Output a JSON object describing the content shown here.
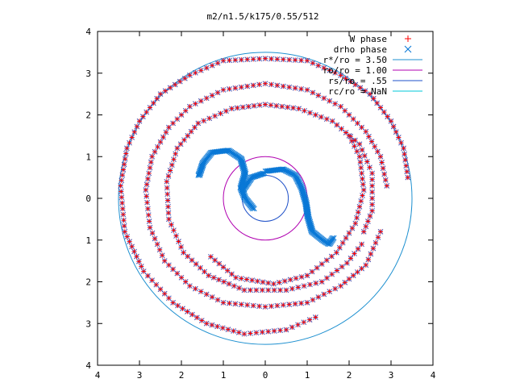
{
  "chart_data": {
    "type": "scatter",
    "title": "m2/n1.5/k175/0.55/512",
    "xlabel": "",
    "ylabel": "",
    "xlim": [
      -4,
      4
    ],
    "ylim": [
      -4,
      4
    ],
    "x_ticks": [
      "4",
      "3",
      "2",
      "1",
      "0",
      "1",
      "2",
      "3",
      "4"
    ],
    "y_ticks": [
      "4",
      "3",
      "2",
      "1",
      "0",
      "1",
      "2",
      "3",
      "4"
    ],
    "grid": false,
    "legend_position": "top-right",
    "legend": [
      {
        "label": "W phase",
        "type": "points",
        "marker": "plus",
        "color": "#ff0000"
      },
      {
        "label": "drho phase",
        "type": "points",
        "marker": "cross",
        "color": "#0a78d6"
      },
      {
        "label": "r*/ro = 3.50",
        "type": "line",
        "color": "#1e90d0"
      },
      {
        "label": "ro/ro = 1.00",
        "type": "line",
        "color": "#b000b0"
      },
      {
        "label": "rs/ro = .55",
        "type": "line",
        "color": "#1e50c8"
      },
      {
        "label": "rc/ro = NaN",
        "type": "line",
        "color": "#00c8d8"
      }
    ],
    "circles": [
      {
        "name": "r*/ro = 3.50",
        "radius": 3.5,
        "color": "#1e90d0"
      },
      {
        "name": "ro/ro = 1.00",
        "radius": 1.0,
        "color": "#b000b0"
      },
      {
        "name": "rs/ro = .55",
        "radius": 0.55,
        "color": "#1e50c8"
      }
    ],
    "series": [
      {
        "name": "W phase",
        "marker_color": "#ff0000",
        "arms": [
          {
            "points": [
              [
                3.4,
                0.5
              ],
              [
                3.3,
                1.2
              ],
              [
                3.0,
                1.85
              ],
              [
                2.5,
                2.5
              ],
              [
                1.8,
                2.95
              ],
              [
                1.0,
                3.3
              ],
              [
                0.0,
                3.35
              ],
              [
                -1.0,
                3.3
              ],
              [
                -1.8,
                2.95
              ],
              [
                -2.5,
                2.5
              ],
              [
                -3.0,
                1.85
              ],
              [
                -3.3,
                1.2
              ],
              [
                -3.45,
                0.3
              ],
              [
                -3.35,
                -0.8
              ],
              [
                -2.9,
                -1.75
              ],
              [
                -2.2,
                -2.5
              ],
              [
                -1.4,
                -3.0
              ],
              [
                -0.5,
                -3.25
              ],
              [
                0.5,
                -3.15
              ],
              [
                1.2,
                -2.85
              ]
            ]
          },
          {
            "points": [
              [
                2.9,
                0.3
              ],
              [
                2.75,
                1.0
              ],
              [
                2.4,
                1.6
              ],
              [
                1.8,
                2.2
              ],
              [
                1.0,
                2.6
              ],
              [
                0.0,
                2.75
              ],
              [
                -1.0,
                2.6
              ],
              [
                -1.8,
                2.2
              ],
              [
                -2.3,
                1.7
              ],
              [
                -2.7,
                1.0
              ],
              [
                -2.85,
                0.2
              ],
              [
                -2.75,
                -0.7
              ],
              [
                -2.4,
                -1.5
              ],
              [
                -1.8,
                -2.1
              ],
              [
                -1.0,
                -2.5
              ],
              [
                0.0,
                -2.6
              ],
              [
                1.0,
                -2.5
              ],
              [
                1.8,
                -2.1
              ],
              [
                2.4,
                -1.6
              ],
              [
                2.75,
                -0.8
              ]
            ]
          },
          {
            "points": [
              [
                2.35,
                -0.8
              ],
              [
                2.55,
                -0.3
              ],
              [
                2.55,
                0.6
              ],
              [
                2.25,
                1.3
              ],
              [
                1.6,
                1.85
              ],
              [
                0.8,
                2.15
              ],
              [
                0.0,
                2.25
              ],
              [
                -0.8,
                2.15
              ],
              [
                -1.6,
                1.8
              ],
              [
                -2.1,
                1.2
              ],
              [
                -2.35,
                0.4
              ],
              [
                -2.3,
                -0.5
              ],
              [
                -1.95,
                -1.3
              ],
              [
                -1.35,
                -1.85
              ],
              [
                -0.5,
                -2.2
              ],
              [
                0.5,
                -2.2
              ],
              [
                1.35,
                -2.0
              ],
              [
                1.95,
                -1.55
              ],
              [
                2.3,
                -1.1
              ]
            ]
          },
          {
            "points": [
              [
                2.0,
                1.5
              ],
              [
                2.25,
                1.0
              ],
              [
                2.35,
                0.2
              ],
              [
                2.15,
                -0.6
              ],
              [
                1.7,
                -1.3
              ],
              [
                1.0,
                -1.85
              ],
              [
                0.2,
                -2.05
              ],
              [
                -0.7,
                -1.9
              ],
              [
                -1.3,
                -1.4
              ]
            ]
          }
        ]
      },
      {
        "name": "drho phase",
        "marker_color": "#0a78d6",
        "arms": [
          {
            "points": [
              [
                -1.6,
                0.55
              ],
              [
                -1.5,
                0.85
              ],
              [
                -1.3,
                1.1
              ],
              [
                -0.9,
                1.15
              ],
              [
                -0.6,
                0.95
              ],
              [
                -0.5,
                0.6
              ],
              [
                -0.6,
                0.25
              ],
              [
                -0.5,
                0.0
              ],
              [
                -0.3,
                -0.25
              ]
            ]
          },
          {
            "points": [
              [
                0.0,
                0.65
              ],
              [
                0.4,
                0.7
              ],
              [
                0.7,
                0.55
              ],
              [
                0.85,
                0.25
              ],
              [
                0.95,
                -0.1
              ],
              [
                1.0,
                -0.45
              ],
              [
                1.1,
                -0.8
              ],
              [
                1.35,
                -1.0
              ],
              [
                1.5,
                -1.1
              ],
              [
                1.6,
                -0.95
              ]
            ]
          },
          {
            "points": [
              [
                -0.55,
                0.2
              ],
              [
                -0.35,
                0.5
              ],
              [
                -0.05,
                0.6
              ]
            ]
          }
        ]
      }
    ]
  }
}
